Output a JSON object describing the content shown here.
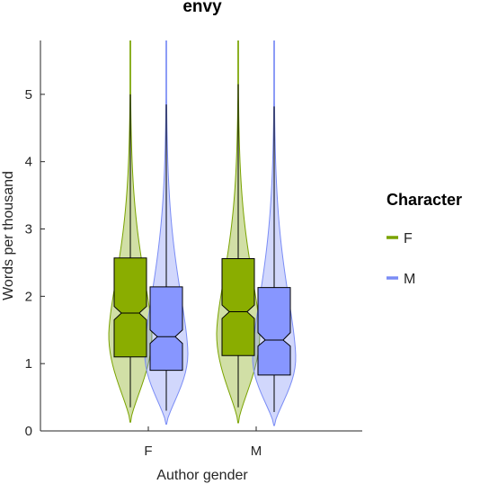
{
  "chart_data": {
    "type": "violin-box",
    "title": "envy",
    "xlabel": "Author gender",
    "ylabel": "Words per thousand",
    "categories": [
      "F",
      "M"
    ],
    "ylim": [
      0,
      5.8
    ],
    "yticks": [
      0,
      1,
      2,
      3,
      4,
      5
    ],
    "legend": {
      "title": "Character",
      "placement": "right"
    },
    "series": [
      {
        "name": "F",
        "color": "#7aa300",
        "box_fill": "#8aad00",
        "stats": [
          {
            "category": "F",
            "min": 0.35,
            "q1": 1.1,
            "median": 1.75,
            "q3": 2.57,
            "max": 5.0,
            "notch_low": 1.65,
            "notch_high": 1.85,
            "violin_min": 0.13,
            "violin_max": 5.8
          },
          {
            "category": "M",
            "min": 0.35,
            "q1": 1.12,
            "median": 1.77,
            "q3": 2.56,
            "max": 5.15,
            "notch_low": 1.67,
            "notch_high": 1.87,
            "violin_min": 0.12,
            "violin_max": 5.8
          }
        ]
      },
      {
        "name": "M",
        "color": "#7a8cf5",
        "box_fill": "#8796ff",
        "stats": [
          {
            "category": "F",
            "min": 0.3,
            "q1": 0.9,
            "median": 1.4,
            "q3": 2.14,
            "max": 4.85,
            "notch_low": 1.3,
            "notch_high": 1.5,
            "violin_min": 0.1,
            "violin_max": 5.8
          },
          {
            "category": "M",
            "min": 0.28,
            "q1": 0.83,
            "median": 1.35,
            "q3": 2.13,
            "max": 4.82,
            "notch_low": 1.26,
            "notch_high": 1.46,
            "violin_min": 0.08,
            "violin_max": 5.8
          }
        ]
      }
    ]
  }
}
